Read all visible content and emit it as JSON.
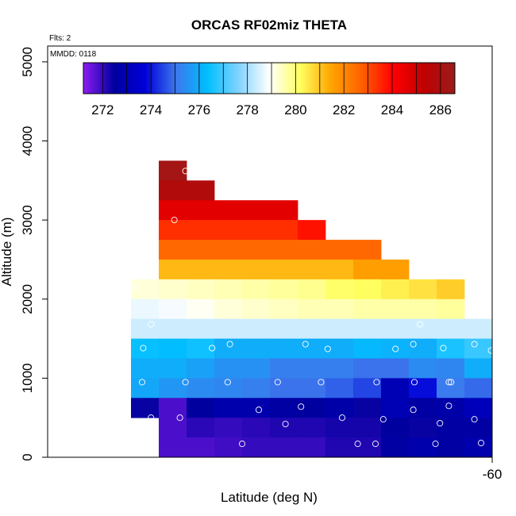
{
  "chart_data": {
    "type": "heatmap",
    "title": "ORCAS RF02miz THETA",
    "flights_label": "Flts: 2",
    "date_label": "MMDD: 0118",
    "xlabel": "Latitude (deg N)",
    "ylabel": "Altitude (m)",
    "xlim": [
      -64.0,
      -60.0
    ],
    "ylim": [
      0,
      5200
    ],
    "x_ticks": [
      -60
    ],
    "y_ticks": [
      0,
      1000,
      2000,
      3000,
      4000,
      5000
    ],
    "colorbar": {
      "vmin": 271.2,
      "vmax": 286.6,
      "ticks": [
        272,
        274,
        276,
        278,
        280,
        282,
        284,
        286
      ],
      "stops": [
        "#8c1cf2",
        "#00009e",
        "#0000d8",
        "#3c78ec",
        "#00bfff",
        "#7fd2ff",
        "#ffffff",
        "#ffff60",
        "#ffa500",
        "#ff6000",
        "#ff0000",
        "#c00000",
        "#9b1c1c"
      ]
    },
    "bin": {
      "lat_width": 0.25,
      "alt_height": 250
    },
    "cells": [
      [
        -63.0,
        3500,
        286.3
      ],
      [
        -63.0,
        3250,
        285.8
      ],
      [
        -62.75,
        3250,
        285.8
      ],
      [
        -63.0,
        3000,
        284.6
      ],
      [
        -62.75,
        3000,
        284.6
      ],
      [
        -62.5,
        3000,
        284.6
      ],
      [
        -62.25,
        3000,
        284.6
      ],
      [
        -62.0,
        3000,
        284.6
      ],
      [
        -63.0,
        2750,
        283.4
      ],
      [
        -62.75,
        2750,
        283.4
      ],
      [
        -62.5,
        2750,
        283.4
      ],
      [
        -62.25,
        2750,
        283.4
      ],
      [
        -62.0,
        2750,
        283.4
      ],
      [
        -61.75,
        2750,
        283.8
      ],
      [
        -63.0,
        2500,
        282.6
      ],
      [
        -62.75,
        2500,
        282.6
      ],
      [
        -62.5,
        2500,
        282.6
      ],
      [
        -62.25,
        2500,
        282.6
      ],
      [
        -62.0,
        2500,
        282.6
      ],
      [
        -61.75,
        2500,
        282.6
      ],
      [
        -61.5,
        2500,
        282.6
      ],
      [
        -61.25,
        2500,
        282.6
      ],
      [
        -63.0,
        2250,
        281.2
      ],
      [
        -62.75,
        2250,
        281.2
      ],
      [
        -62.5,
        2250,
        281.2
      ],
      [
        -62.25,
        2250,
        281.2
      ],
      [
        -62.0,
        2250,
        281.2
      ],
      [
        -61.75,
        2250,
        281.2
      ],
      [
        -61.5,
        2250,
        281.2
      ],
      [
        -61.25,
        2250,
        281.6
      ],
      [
        -61.0,
        2250,
        281.6
      ],
      [
        -63.25,
        2000,
        279.2
      ],
      [
        -63.0,
        2000,
        279.3
      ],
      [
        -62.75,
        2000,
        279.4
      ],
      [
        -62.5,
        2000,
        279.5
      ],
      [
        -62.25,
        2000,
        279.6
      ],
      [
        -62.0,
        2000,
        279.7
      ],
      [
        -61.75,
        2000,
        279.8
      ],
      [
        -61.5,
        2000,
        280.1
      ],
      [
        -61.25,
        2000,
        280.2
      ],
      [
        -61.0,
        2000,
        280.4
      ],
      [
        -60.75,
        2000,
        280.6
      ],
      [
        -60.5,
        2000,
        280.9
      ],
      [
        -63.25,
        1750,
        278.7
      ],
      [
        -63.0,
        1750,
        278.8
      ],
      [
        -62.75,
        1750,
        279.0
      ],
      [
        -62.5,
        1750,
        279.2
      ],
      [
        -62.25,
        1750,
        279.3
      ],
      [
        -62.0,
        1750,
        279.4
      ],
      [
        -61.75,
        1750,
        279.5
      ],
      [
        -61.5,
        1750,
        279.5
      ],
      [
        -61.25,
        1750,
        279.6
      ],
      [
        -61.0,
        1750,
        279.6
      ],
      [
        -60.75,
        1750,
        279.6
      ],
      [
        -60.5,
        1750,
        279.7
      ],
      [
        -63.25,
        1500,
        278.4
      ],
      [
        -63.0,
        1500,
        278.4
      ],
      [
        -62.75,
        1500,
        278.4
      ],
      [
        -62.5,
        1500,
        278.4
      ],
      [
        -62.25,
        1500,
        278.4
      ],
      [
        -62.0,
        1500,
        278.4
      ],
      [
        -61.75,
        1500,
        278.4
      ],
      [
        -61.5,
        1500,
        278.4
      ],
      [
        -61.25,
        1500,
        278.4
      ],
      [
        -61.0,
        1500,
        278.4
      ],
      [
        -60.75,
        1500,
        278.4
      ],
      [
        -60.5,
        1500,
        278.4
      ],
      [
        -60.25,
        1500,
        278.4
      ],
      [
        -63.25,
        1250,
        276.4
      ],
      [
        -63.0,
        1250,
        276.3
      ],
      [
        -62.75,
        1250,
        276.5
      ],
      [
        -62.5,
        1250,
        276.0
      ],
      [
        -62.25,
        1250,
        276.0
      ],
      [
        -62.0,
        1250,
        276.0
      ],
      [
        -61.75,
        1250,
        276.0
      ],
      [
        -61.5,
        1250,
        276.0
      ],
      [
        -61.25,
        1250,
        276.2
      ],
      [
        -61.0,
        1250,
        276.1
      ],
      [
        -60.75,
        1250,
        276.0
      ],
      [
        -60.5,
        1250,
        276.6
      ],
      [
        -60.25,
        1250,
        276.9
      ],
      [
        -60.0,
        1250,
        276.6
      ],
      [
        -63.25,
        1000,
        276.0
      ],
      [
        -63.0,
        1000,
        276.0
      ],
      [
        -62.75,
        1000,
        275.8
      ],
      [
        -62.5,
        1000,
        275.5
      ],
      [
        -62.25,
        1000,
        275.5
      ],
      [
        -62.0,
        1000,
        275.2
      ],
      [
        -61.75,
        1000,
        275.2
      ],
      [
        -61.5,
        1000,
        275.2
      ],
      [
        -61.25,
        1000,
        275.0
      ],
      [
        -61.0,
        1000,
        275.0
      ],
      [
        -60.75,
        1000,
        275.4
      ],
      [
        -60.5,
        1000,
        275.3
      ],
      [
        -60.25,
        1000,
        276.0
      ],
      [
        -60.0,
        1000,
        276.0
      ],
      [
        -63.25,
        750,
        275.9
      ],
      [
        -63.0,
        750,
        275.6
      ],
      [
        -62.75,
        750,
        275.4
      ],
      [
        -62.5,
        750,
        275.3
      ],
      [
        -62.25,
        750,
        275.2
      ],
      [
        -62.0,
        750,
        275.0
      ],
      [
        -61.75,
        750,
        275.0
      ],
      [
        -61.5,
        750,
        274.8
      ],
      [
        -61.25,
        750,
        274.5
      ],
      [
        -61.0,
        750,
        273.0
      ],
      [
        -60.75,
        750,
        273.9
      ],
      [
        -60.5,
        750,
        275.1
      ],
      [
        -60.25,
        750,
        274.9
      ],
      [
        -60.0,
        750,
        275.2
      ],
      [
        -63.25,
        500,
        272.4
      ],
      [
        -63.0,
        500,
        271.8
      ],
      [
        -62.75,
        500,
        272.5
      ],
      [
        -62.5,
        500,
        272.8
      ],
      [
        -62.25,
        500,
        272.8
      ],
      [
        -62.0,
        500,
        272.6
      ],
      [
        -61.75,
        500,
        272.5
      ],
      [
        -61.5,
        500,
        272.7
      ],
      [
        -61.25,
        500,
        272.4
      ],
      [
        -61.0,
        500,
        273.0
      ],
      [
        -60.75,
        500,
        272.6
      ],
      [
        -60.5,
        500,
        272.7
      ],
      [
        -60.25,
        500,
        273.1
      ],
      [
        -60.0,
        500,
        273.2
      ],
      [
        -63.0,
        250,
        271.8
      ],
      [
        -62.75,
        250,
        272.1
      ],
      [
        -62.5,
        250,
        272.0
      ],
      [
        -62.25,
        250,
        272.1
      ],
      [
        -62.0,
        250,
        272.2
      ],
      [
        -61.75,
        250,
        272.2
      ],
      [
        -61.5,
        250,
        272.3
      ],
      [
        -61.25,
        250,
        272.3
      ],
      [
        -61.0,
        250,
        272.5
      ],
      [
        -60.75,
        250,
        272.4
      ],
      [
        -60.5,
        250,
        272.6
      ],
      [
        -60.25,
        250,
        272.6
      ],
      [
        -60.0,
        250,
        272.8
      ],
      [
        -63.0,
        0,
        271.8
      ],
      [
        -62.75,
        0,
        271.8
      ],
      [
        -62.5,
        0,
        271.9
      ],
      [
        -62.25,
        0,
        272.0
      ],
      [
        -62.0,
        0,
        272.0
      ],
      [
        -61.75,
        0,
        272.0
      ],
      [
        -61.5,
        0,
        272.2
      ],
      [
        -61.25,
        0,
        272.2
      ],
      [
        -61.0,
        0,
        272.6
      ],
      [
        -60.75,
        0,
        272.8
      ],
      [
        -60.5,
        0,
        272.6
      ],
      [
        -60.25,
        0,
        272.8
      ],
      [
        -60.0,
        0,
        272.8
      ]
    ],
    "points": [
      [
        -62.76,
        3620
      ],
      [
        -62.86,
        3000
      ],
      [
        -63.22,
        2150
      ],
      [
        -63.07,
        1680
      ],
      [
        -60.65,
        1680
      ],
      [
        -63.14,
        1380
      ],
      [
        -62.52,
        1380
      ],
      [
        -62.36,
        1430
      ],
      [
        -61.68,
        1430
      ],
      [
        -61.48,
        1370
      ],
      [
        -60.87,
        1370
      ],
      [
        -60.71,
        1430
      ],
      [
        -60.44,
        1380
      ],
      [
        -60.16,
        1430
      ],
      [
        -60.01,
        1350
      ],
      [
        -63.15,
        950
      ],
      [
        -62.76,
        950
      ],
      [
        -62.38,
        950
      ],
      [
        -61.93,
        950
      ],
      [
        -61.54,
        950
      ],
      [
        -61.04,
        950
      ],
      [
        -60.7,
        950
      ],
      [
        -60.39,
        950
      ],
      [
        -60.37,
        950
      ],
      [
        -63.07,
        500
      ],
      [
        -62.81,
        500
      ],
      [
        -62.1,
        600
      ],
      [
        -61.86,
        420
      ],
      [
        -61.72,
        640
      ],
      [
        -61.35,
        500
      ],
      [
        -60.98,
        480
      ],
      [
        -60.71,
        600
      ],
      [
        -60.39,
        650
      ],
      [
        -60.47,
        430
      ],
      [
        -60.16,
        480
      ],
      [
        -63.22,
        170
      ],
      [
        -63.08,
        170
      ],
      [
        -62.25,
        170
      ],
      [
        -61.21,
        170
      ],
      [
        -61.05,
        170
      ],
      [
        -60.51,
        170
      ],
      [
        -60.1,
        180
      ]
    ]
  }
}
